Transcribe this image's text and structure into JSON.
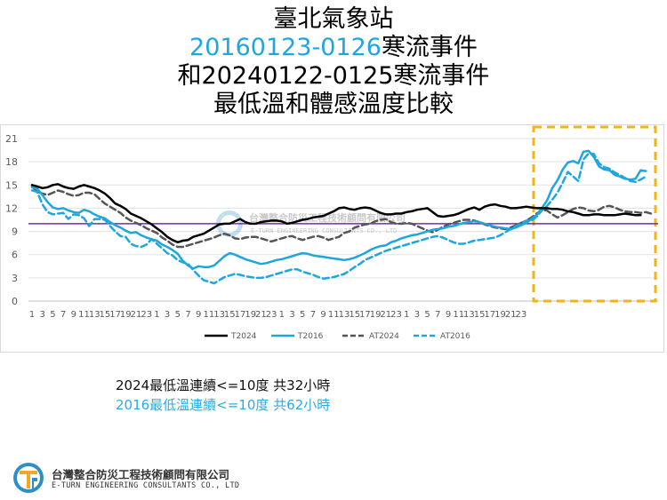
{
  "title": {
    "line1": "臺北氣象站",
    "line2_accent": "20160123-0126",
    "line2_rest": "寒流事件",
    "line3": "和20240122-0125寒流事件",
    "line4": "最低溫和體感溫度比較"
  },
  "chart_data": {
    "type": "line",
    "ylim": [
      0,
      21
    ],
    "yticks": [
      0,
      3,
      6,
      9,
      12,
      15,
      18,
      21
    ],
    "x_tick_labels": [
      "1",
      "3",
      "5",
      "7",
      "9",
      "11",
      "13",
      "15",
      "17",
      "19",
      "21",
      "23",
      "1",
      "3",
      "5",
      "7",
      "9",
      "11",
      "13",
      "15",
      "17",
      "19",
      "21",
      "23",
      "1",
      "3",
      "5",
      "7",
      "9",
      "11",
      "13",
      "15",
      "17",
      "19",
      "21",
      "23",
      "1",
      "3",
      "5",
      "7",
      "9",
      "11",
      "13",
      "15",
      "17",
      "19",
      "21",
      "23"
    ],
    "reference_line": {
      "y": 10,
      "color": "#7030a0"
    },
    "highlight_box_color": "#f2b413",
    "highlight_from_hour": 7,
    "series": [
      {
        "name": "T2024",
        "color": "#000000",
        "style": "solid",
        "values": [
          15,
          14.8,
          14.6,
          14.7,
          15,
          15.1,
          14.8,
          14.6,
          14.5,
          14.8,
          15,
          14.8,
          14.6,
          14.3,
          13.9,
          13.3,
          12.6,
          12.3,
          11.9,
          11.3,
          11,
          10.7,
          10.3,
          9.9,
          9.4,
          8.9,
          8.3,
          7.9,
          7.6,
          7.8,
          7.9,
          8.3,
          8.5,
          8.7,
          9.1,
          9.5,
          9.9,
          10,
          10,
          10.3,
          10.6,
          10.2,
          10,
          10,
          10.2,
          10.3,
          10.4,
          10.4,
          10.3,
          10,
          10.1,
          10.3,
          10.5,
          10.6,
          10.8,
          10.9,
          11,
          11.3,
          11.6,
          12,
          12.1,
          11.9,
          11.8,
          12,
          12.1,
          12,
          11.7,
          11.4,
          11.2,
          11.2,
          11.3,
          11.3,
          11.5,
          11.6,
          11.8,
          11.9,
          12,
          11.5,
          11,
          10.9,
          11,
          11.1,
          11.3,
          11.6,
          11.9,
          12.1,
          11.8,
          12.2,
          12.4,
          12.5,
          12.3,
          12.2,
          12,
          12,
          12.1,
          12.2,
          12.1,
          12,
          12,
          12,
          11.9,
          11.9,
          11.8,
          11.6,
          11.5,
          11.3,
          11.1,
          11.1,
          11.2,
          11.2,
          11.1,
          11.1,
          11.1,
          11.2,
          11.3,
          11.2,
          11.1,
          11.1
        ]
      },
      {
        "name": "T2016",
        "color": "#1ea6df",
        "style": "solid",
        "values": [
          14.7,
          14.5,
          13.7,
          12.8,
          12.1,
          11.9,
          12,
          11.7,
          11.5,
          11.4,
          11.8,
          11.6,
          11.2,
          10.9,
          10.7,
          10.2,
          9.8,
          9.5,
          9.1,
          8.8,
          8.9,
          8.5,
          8.2,
          8,
          7.8,
          7.3,
          7,
          6.6,
          6.1,
          5.2,
          4.6,
          4.2,
          4.5,
          4.4,
          4.4,
          4.6,
          5.2,
          5.8,
          6.2,
          6,
          5.7,
          5.4,
          5.2,
          5,
          4.8,
          4.9,
          5.1,
          5.3,
          5.4,
          5.6,
          5.8,
          6,
          6.2,
          6.1,
          5.9,
          5.8,
          5.7,
          5.6,
          5.5,
          5.4,
          5.3,
          5.4,
          5.6,
          5.9,
          6.2,
          6.6,
          6.9,
          7.1,
          7.2,
          7.6,
          7.8,
          8.1,
          8.3,
          8.5,
          8.6,
          8.8,
          9,
          9.2,
          9.3,
          9.4,
          9.6,
          9.7,
          9.9,
          10.1,
          10.2,
          10.3,
          10.2,
          10,
          9.8,
          9.6,
          9.5,
          9.4,
          9.3,
          9.5,
          9.8,
          10.1,
          10.6,
          11.1,
          12,
          13,
          14.6,
          15.6,
          17,
          17.9,
          18.1,
          17.8,
          19.3,
          19.4,
          18.6,
          17.4,
          17,
          16.9,
          16.3,
          16.1,
          15.8,
          15.7,
          15.8,
          16.9,
          16.8
        ]
      },
      {
        "name": "AT2024",
        "color": "#555555",
        "style": "dashed",
        "values": [
          14.8,
          14.1,
          13.9,
          13.7,
          14,
          14.3,
          14.1,
          13.8,
          13.6,
          13.7,
          14,
          14,
          13.8,
          13.2,
          12.6,
          12.2,
          11.8,
          11.4,
          10.8,
          10.4,
          10.1,
          9.8,
          9.4,
          9.1,
          8.8,
          8.2,
          7.8,
          7.3,
          7,
          7,
          7.2,
          7.4,
          7.6,
          7.8,
          8,
          8.2,
          8.5,
          8.7,
          8.5,
          8.1,
          8,
          8.2,
          8.3,
          8.3,
          8.1,
          7.9,
          7.7,
          7.9,
          8.1,
          8.3,
          8.4,
          8.1,
          7.9,
          8.1,
          8.3,
          8.4,
          8.2,
          7.9,
          8.1,
          8.3,
          8.8,
          9,
          9.5,
          9.7,
          9.9,
          10,
          10.3,
          10.5,
          10.6,
          10.2,
          10,
          10,
          10.1,
          10,
          9.7,
          9.4,
          9.1,
          8.9,
          9.2,
          9.6,
          9.9,
          10.1,
          10.3,
          10.5,
          10.5,
          10.4,
          10.2,
          9.9,
          9.7,
          9.5,
          9.4,
          9.3,
          9.5,
          9.8,
          10.1,
          10.4,
          10.8,
          11.3,
          11.8,
          11.7,
          11.2,
          10.8,
          11.1,
          11.5,
          11.9,
          12.1,
          12,
          11.7,
          11.6,
          11.8,
          12.2,
          12.3,
          12.1,
          11.8,
          11.6,
          11.5,
          11.5,
          11.4,
          11.5,
          11.3
        ]
      },
      {
        "name": "AT2016",
        "color": "#1ea6df",
        "style": "dashed",
        "values": [
          14.3,
          14.1,
          12.5,
          11.5,
          11.2,
          11.3,
          11.4,
          10.6,
          11.2,
          11.1,
          10.7,
          9.7,
          10.6,
          10.6,
          10.5,
          9.7,
          9,
          8.4,
          8.3,
          7.4,
          7.1,
          7,
          7.3,
          8,
          7.4,
          6.8,
          6.2,
          5.9,
          5.3,
          5,
          4.8,
          4,
          3.3,
          2.7,
          2.5,
          2.3,
          2.7,
          3.1,
          3.3,
          3.5,
          3.4,
          3.2,
          3.1,
          3,
          3,
          3.1,
          3.3,
          3.5,
          3.7,
          3.9,
          4.1,
          4.1,
          3.8,
          3.6,
          3.4,
          3.1,
          2.9,
          3,
          3.1,
          3.3,
          3.5,
          3.9,
          4.4,
          4.8,
          5.3,
          5.6,
          5.9,
          6.2,
          6.5,
          6.7,
          6.9,
          7.1,
          7.3,
          7.5,
          7.7,
          7.9,
          8.1,
          8.3,
          8.4,
          8.2,
          7.9,
          7.6,
          7.4,
          7.4,
          7.6,
          7.8,
          7.9,
          8,
          8.1,
          8.2,
          8.5,
          8.9,
          9.3,
          9.7,
          10,
          10.4,
          10.4,
          10.9,
          11.7,
          12.3,
          13.1,
          14,
          15.3,
          16.7,
          16.1,
          15.5,
          18.3,
          19.1,
          19,
          17.8,
          17.3,
          17.1,
          16.6,
          16.3,
          15.9,
          15.5,
          15.4,
          15.7,
          16.1
        ]
      }
    ]
  },
  "notes": {
    "note_2024": "2024最低溫連續<=10度 共32小時",
    "note_2016": "2016最低溫連續<=10度 共62小時"
  },
  "watermark": {
    "name": "台灣整合防災工程技術顧問有限公司",
    "english": "E-TURN ENGINEERING CONSULTANTS CO., LTD"
  },
  "logo": {
    "name": "台灣整合防災工程技術顧問有限公司",
    "english": "E-TURN ENGINEERING CONSULTANTS CO., LTD"
  }
}
